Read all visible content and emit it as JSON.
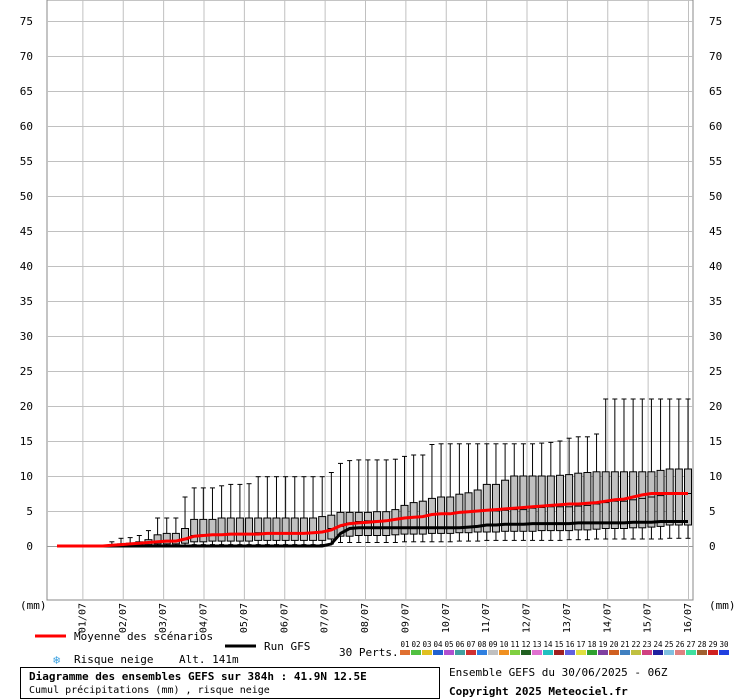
{
  "chart_data": {
    "type": "boxplot",
    "title": "Diagramme des ensembles GEFS sur 384h : 41.9N 12.5E",
    "subtitle": "Cumul précipitations (mm) , risque neige",
    "ylabel": "(mm)",
    "ylim": [
      -8,
      77
    ],
    "yticks": [
      0,
      5,
      10,
      15,
      20,
      25,
      30,
      35,
      40,
      45,
      50,
      55,
      60,
      65,
      70,
      75
    ],
    "date_labels": [
      "01/07",
      "02/07",
      "03/07",
      "04/07",
      "05/07",
      "06/07",
      "07/07",
      "08/07",
      "09/07",
      "10/07",
      "11/07",
      "12/07",
      "13/07",
      "14/07",
      "15/07",
      "16/07"
    ],
    "grid": true,
    "boxes": [
      [
        0,
        0,
        0,
        0,
        0
      ],
      [
        0,
        0,
        0,
        0,
        0
      ],
      [
        0,
        0,
        0,
        0,
        0
      ],
      [
        0,
        0,
        0,
        0,
        0
      ],
      [
        0,
        0,
        0,
        0,
        0
      ],
      [
        0,
        0,
        0,
        0,
        0
      ],
      [
        0,
        0,
        0,
        0.2,
        0.6
      ],
      [
        0,
        0,
        0.1,
        0.3,
        1.1
      ],
      [
        0,
        0.1,
        0.2,
        0.4,
        1.2
      ],
      [
        0,
        0.2,
        0.3,
        0.6,
        1.5
      ],
      [
        0,
        0.2,
        0.5,
        0.9,
        2.2
      ],
      [
        0,
        0.3,
        0.7,
        1.6,
        4
      ],
      [
        0,
        0.3,
        0.8,
        1.8,
        4
      ],
      [
        0,
        0.3,
        0.8,
        1.8,
        4
      ],
      [
        0,
        0.4,
        0.9,
        2.5,
        7
      ],
      [
        0.2,
        0.6,
        1.5,
        3.8,
        8.3
      ],
      [
        0.2,
        0.6,
        1.6,
        3.8,
        8.3
      ],
      [
        0.2,
        0.7,
        1.7,
        3.8,
        8.3
      ],
      [
        0.2,
        0.7,
        1.7,
        4,
        8.6
      ],
      [
        0.2,
        0.7,
        1.8,
        4,
        8.8
      ],
      [
        0.2,
        0.7,
        1.8,
        4,
        8.8
      ],
      [
        0.2,
        0.7,
        1.8,
        4,
        8.9
      ],
      [
        0.2,
        0.8,
        1.9,
        4,
        9.9
      ],
      [
        0.2,
        0.8,
        1.9,
        4,
        9.9
      ],
      [
        0.2,
        0.8,
        1.9,
        4,
        9.9
      ],
      [
        0.2,
        0.8,
        1.9,
        4,
        9.9
      ],
      [
        0.2,
        0.8,
        1.9,
        4,
        9.9
      ],
      [
        0.2,
        0.8,
        1.9,
        4,
        9.9
      ],
      [
        0.2,
        0.8,
        2,
        4,
        9.9
      ],
      [
        0.2,
        0.8,
        2,
        4.2,
        9.9
      ],
      [
        0.3,
        1,
        2.5,
        4.4,
        10.5
      ],
      [
        0.5,
        1.4,
        2.8,
        4.8,
        11.8
      ],
      [
        0.5,
        1.4,
        3.3,
        4.8,
        12.2
      ],
      [
        0.5,
        1.5,
        3.5,
        4.8,
        12.3
      ],
      [
        0.5,
        1.5,
        3.6,
        4.8,
        12.3
      ],
      [
        0.5,
        1.5,
        3.6,
        4.9,
        12.3
      ],
      [
        0.5,
        1.5,
        3.7,
        4.9,
        12.3
      ],
      [
        0.5,
        1.6,
        3.8,
        5.2,
        12.4
      ],
      [
        0.6,
        1.7,
        4,
        5.8,
        12.8
      ],
      [
        0.6,
        1.7,
        4,
        6.2,
        13
      ],
      [
        0.6,
        1.7,
        4.2,
        6.4,
        13
      ],
      [
        0.6,
        1.8,
        4.5,
        6.8,
        14.5
      ],
      [
        0.6,
        1.8,
        4.5,
        7,
        14.6
      ],
      [
        0.6,
        1.8,
        4.6,
        7,
        14.6
      ],
      [
        0.7,
        1.9,
        4.8,
        7.4,
        14.6
      ],
      [
        0.7,
        1.9,
        4.8,
        7.6,
        14.6
      ],
      [
        0.7,
        2,
        5,
        8,
        14.6
      ],
      [
        0.8,
        2,
        5,
        8.8,
        14.6
      ],
      [
        0.8,
        2,
        5,
        8.8,
        14.6
      ],
      [
        0.8,
        2.1,
        5.1,
        9.4,
        14.6
      ],
      [
        0.8,
        2.1,
        5.2,
        10,
        14.6
      ],
      [
        0.8,
        2.1,
        5.2,
        10,
        14.6
      ],
      [
        0.8,
        2.1,
        5.4,
        10,
        14.6
      ],
      [
        0.8,
        2.2,
        5.5,
        10,
        14.7
      ],
      [
        0.8,
        2.2,
        5.6,
        10,
        14.8
      ],
      [
        0.8,
        2.2,
        5.6,
        10.1,
        15
      ],
      [
        0.9,
        2.2,
        5.6,
        10.2,
        15.4
      ],
      [
        0.9,
        2.3,
        5.7,
        10.4,
        15.6
      ],
      [
        0.9,
        2.3,
        5.8,
        10.5,
        15.6
      ],
      [
        1,
        2.4,
        6,
        10.6,
        16
      ],
      [
        1,
        2.5,
        6.2,
        10.6,
        21
      ],
      [
        1,
        2.5,
        6.4,
        10.6,
        21
      ],
      [
        1,
        2.5,
        6.4,
        10.6,
        21
      ],
      [
        1,
        2.6,
        6.6,
        10.6,
        21
      ],
      [
        1,
        2.6,
        6.8,
        10.6,
        21
      ],
      [
        1,
        2.7,
        7,
        10.6,
        21
      ],
      [
        1,
        2.8,
        7.2,
        10.8,
        21
      ],
      [
        1.1,
        3,
        7.5,
        11,
        21
      ],
      [
        1.1,
        3,
        7.5,
        11,
        21
      ],
      [
        1.1,
        3,
        7.5,
        11,
        21
      ]
    ],
    "mean": [
      0,
      0,
      0,
      0,
      0,
      0,
      0.1,
      0.2,
      0.3,
      0.4,
      0.5,
      0.6,
      0.7,
      0.7,
      1,
      1.4,
      1.5,
      1.6,
      1.6,
      1.7,
      1.7,
      1.7,
      1.7,
      1.8,
      1.8,
      1.8,
      1.8,
      1.8,
      1.9,
      2,
      2.3,
      2.9,
      3.2,
      3.3,
      3.4,
      3.5,
      3.6,
      3.8,
      4,
      4.1,
      4.2,
      4.5,
      4.6,
      4.6,
      4.8,
      4.9,
      5,
      5.1,
      5.2,
      5.3,
      5.4,
      5.5,
      5.6,
      5.7,
      5.8,
      5.9,
      6,
      6,
      6.1,
      6.2,
      6.4,
      6.6,
      6.7,
      7,
      7.3,
      7.5,
      7.5,
      7.5,
      7.5,
      7.5
    ],
    "gfs": [
      0,
      0,
      0,
      0,
      0,
      0,
      0,
      0,
      0,
      0,
      0,
      0,
      0,
      0,
      0,
      0,
      0,
      0,
      0,
      0,
      0,
      0,
      0,
      0,
      0,
      0,
      0,
      0,
      0,
      0,
      0.3,
      1.8,
      2.5,
      2.6,
      2.6,
      2.6,
      2.6,
      2.6,
      2.6,
      2.6,
      2.6,
      2.6,
      2.6,
      2.6,
      2.6,
      2.7,
      2.8,
      3,
      3,
      3.1,
      3.1,
      3.1,
      3.2,
      3.2,
      3.2,
      3.2,
      3.2,
      3.3,
      3.3,
      3.3,
      3.3,
      3.3,
      3.3,
      3.4,
      3.4,
      3.4,
      3.5,
      3.5,
      3.5,
      3.5
    ],
    "legend": {
      "mean": "Moyenne des scénarios",
      "gfs": "Run GFS",
      "snow": "Risque neige",
      "altitude": "Alt. 141m",
      "perts": "30 Perts.",
      "position": "bottom"
    },
    "pert_labels": [
      "01",
      "02",
      "03",
      "04",
      "05",
      "06",
      "07",
      "08",
      "09",
      "10",
      "11",
      "12",
      "13",
      "14",
      "15",
      "16",
      "17",
      "18",
      "19",
      "20",
      "21",
      "22",
      "23",
      "24",
      "25",
      "26",
      "27",
      "28",
      "29",
      "30"
    ],
    "pert_colors": [
      "#e07030",
      "#50c040",
      "#e0c020",
      "#2060d0",
      "#b050d0",
      "#40a0a0",
      "#d03030",
      "#3080e0",
      "#c0c0c0",
      "#f09020",
      "#80d040",
      "#206020",
      "#e070d0",
      "#20c0c0",
      "#a02020",
      "#6060e0",
      "#e0e040",
      "#30a030",
      "#8040a0",
      "#d06020",
      "#4080c0",
      "#c0c040",
      "#d04080",
      "#2020a0",
      "#80c0e0",
      "#e08080",
      "#40e0a0",
      "#a06030",
      "#d02020",
      "#2040e0"
    ],
    "colors": {
      "mean": "#ff0000",
      "gfs": "#000000",
      "box": "#c0c0c0",
      "grid": "#c0c0c0"
    }
  },
  "footer": {
    "run_label": "Ensemble GEFS du 30/06/2025 - 06Z",
    "copyright": "Copyright 2025 Meteociel.fr"
  },
  "icons": {
    "snow": "snowflake-icon"
  }
}
